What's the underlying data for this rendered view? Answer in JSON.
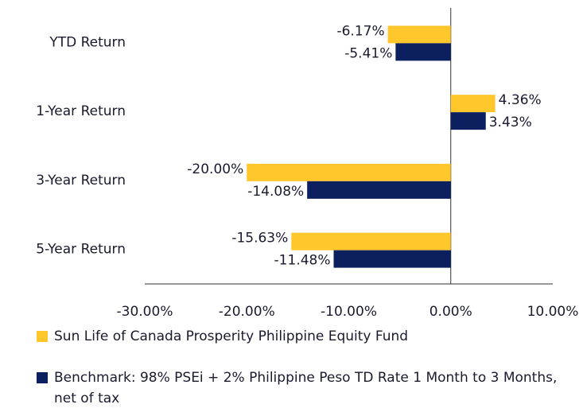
{
  "chart_data": {
    "type": "bar",
    "orientation": "horizontal",
    "categories": [
      "YTD Return",
      "1-Year Return",
      "3-Year Return",
      "5-Year Return"
    ],
    "series": [
      {
        "name": "Sun Life of Canada Prosperity Philippine Equity Fund",
        "color": "#ffc72c",
        "values": [
          -6.17,
          4.36,
          -20.0,
          -15.63
        ],
        "value_labels": [
          "-6.17%",
          "4.36%",
          "-20.00%",
          "-15.63%"
        ]
      },
      {
        "name": "Benchmark: 98% PSEi + 2% Philippine Peso TD Rate 1 Month to 3 Months, net of tax",
        "color": "#0c1f5e",
        "values": [
          -5.41,
          3.43,
          -14.08,
          -11.48
        ],
        "value_labels": [
          "-5.41%",
          "3.43%",
          "-14.08%",
          "-11.48%"
        ]
      }
    ],
    "xlim": [
      -30,
      10
    ],
    "xticks": [
      {
        "value": -30,
        "label": "-30.00%"
      },
      {
        "value": -20,
        "label": "-20.00%"
      },
      {
        "value": -10,
        "label": "-10.00%"
      },
      {
        "value": 0,
        "label": "0.00%"
      },
      {
        "value": 10,
        "label": "10.00%"
      }
    ],
    "legend": "bottom"
  }
}
